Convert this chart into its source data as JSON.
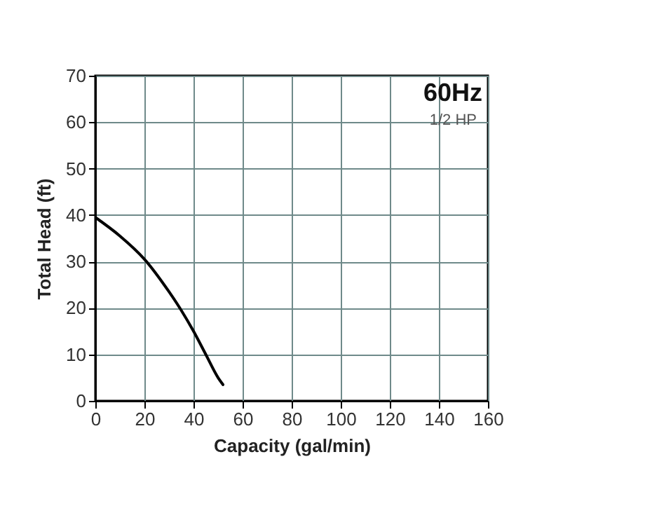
{
  "chart_data": {
    "type": "line",
    "title": "60Hz",
    "subtitle": "1/2 HP",
    "xlabel": "Capacity (gal/min)",
    "ylabel": "Total Head (ft)",
    "x": [
      0,
      10,
      20,
      30,
      35,
      40,
      45,
      50,
      52
    ],
    "series": [
      {
        "color": "#000000",
        "values": [
          39.5,
          35.5,
          30.5,
          23.5,
          19.5,
          15,
          10,
          5,
          3.5
        ]
      }
    ],
    "xlim": [
      0,
      160
    ],
    "xticks": [
      0,
      20,
      40,
      60,
      80,
      100,
      120,
      140,
      160
    ],
    "ylim": [
      0,
      70
    ],
    "yticks": [
      0,
      10,
      20,
      30,
      40,
      50,
      60,
      70
    ],
    "grid": true,
    "marker": "none",
    "line_style": "solid"
  }
}
